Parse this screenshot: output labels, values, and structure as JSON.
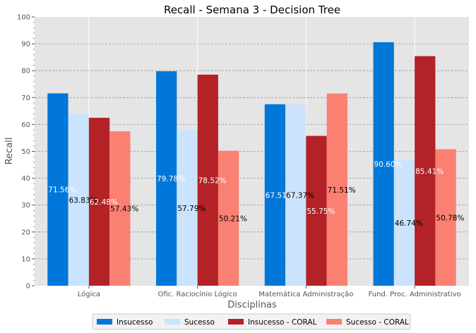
{
  "chart_data": {
    "type": "bar",
    "title": "Recall - Semana 3 - Decision Tree",
    "xlabel": "Disciplinas",
    "ylabel": "Recall",
    "ylim": [
      0,
      100
    ],
    "yticks": [
      0,
      10,
      20,
      30,
      40,
      50,
      60,
      70,
      80,
      90,
      100
    ],
    "grid": true,
    "legend_position": "bottom",
    "categories": [
      "Lógica",
      "Ofic. Raciocínio Lógico",
      "Matemática Administração",
      "Fund. Proc. Administrativo"
    ],
    "series": [
      {
        "name": "Insucesso",
        "color": "#0077d9",
        "values": [
          71.56,
          79.78,
          67.51,
          90.6
        ],
        "labels": [
          "71.56%",
          "79.78%",
          "67.51%",
          "90.60%"
        ]
      },
      {
        "name": "Sucesso",
        "color": "#cce3fd",
        "values": [
          63.83,
          57.79,
          67.37,
          46.74
        ],
        "labels": [
          "63.83%",
          "57.79%",
          "67.37%",
          "46.74%"
        ]
      },
      {
        "name": "Insucesso - CORAL",
        "color": "#b22226",
        "values": [
          62.48,
          78.52,
          55.75,
          85.41
        ],
        "labels": [
          "62.48%",
          "78.52%",
          "55.75%",
          "85.41%"
        ]
      },
      {
        "name": "Sucesso - CORAL",
        "color": "#fa8072",
        "values": [
          57.43,
          50.21,
          71.51,
          50.78
        ],
        "labels": [
          "57.43%",
          "50.21%",
          "71.51%",
          "50.78%"
        ]
      }
    ]
  }
}
